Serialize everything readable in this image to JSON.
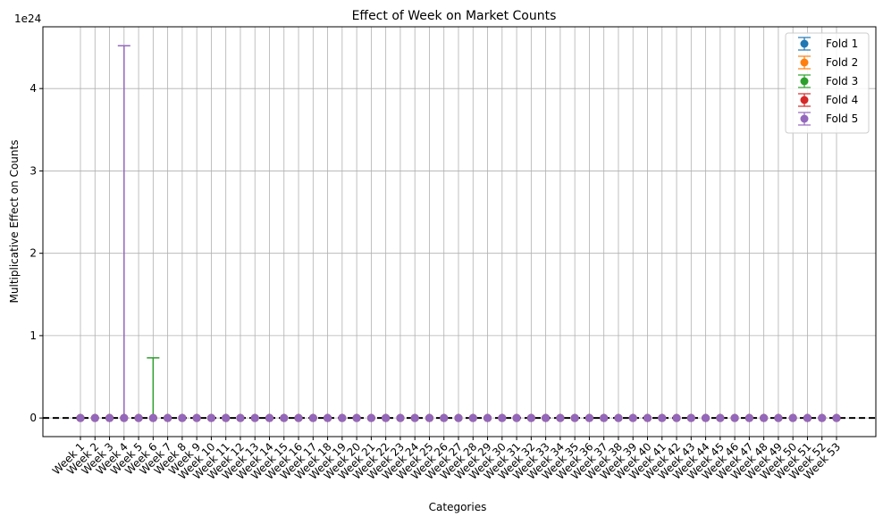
{
  "chart_data": {
    "type": "scatter",
    "title": "Effect of Week on Market Counts",
    "xlabel": "Categories",
    "ylabel": "Multiplicative Effect on Counts",
    "y_offset_label": "1e24",
    "y_scale_exponent": 24,
    "ylim": [
      -0.226,
      4.75
    ],
    "yticks": [
      0,
      1,
      2,
      3,
      4
    ],
    "grid": true,
    "legend_position": "top-right",
    "reference_line": {
      "y": 0,
      "style": "dashed",
      "color": "#000000"
    },
    "categories": [
      "Week 1",
      "Week 2",
      "Week 3",
      "Week 4",
      "Week 5",
      "Week 6",
      "Week 7",
      "Week 8",
      "Week 9",
      "Week 10",
      "Week 11",
      "Week 12",
      "Week 13",
      "Week 14",
      "Week 15",
      "Week 16",
      "Week 17",
      "Week 18",
      "Week 19",
      "Week 20",
      "Week 21",
      "Week 22",
      "Week 23",
      "Week 24",
      "Week 25",
      "Week 26",
      "Week 27",
      "Week 28",
      "Week 29",
      "Week 30",
      "Week 31",
      "Week 32",
      "Week 33",
      "Week 34",
      "Week 35",
      "Week 36",
      "Week 37",
      "Week 38",
      "Week 39",
      "Week 40",
      "Week 41",
      "Week 42",
      "Week 43",
      "Week 44",
      "Week 45",
      "Week 46",
      "Week 47",
      "Week 48",
      "Week 49",
      "Week 50",
      "Week 51",
      "Week 52",
      "Week 53"
    ],
    "series": [
      {
        "name": "Fold 1",
        "color": "#1f77b4",
        "value": 0,
        "error_bars": []
      },
      {
        "name": "Fold 2",
        "color": "#ff7f0e",
        "value": 0,
        "error_bars": []
      },
      {
        "name": "Fold 3",
        "color": "#2ca02c",
        "value": 0,
        "error_bars": [
          {
            "category": "Week 6",
            "upper": 0.73
          }
        ]
      },
      {
        "name": "Fold 4",
        "color": "#d62728",
        "value": 0,
        "error_bars": []
      },
      {
        "name": "Fold 5",
        "color": "#9467bd",
        "value": 0,
        "error_bars": [
          {
            "category": "Week 4",
            "upper": 4.52
          }
        ]
      }
    ]
  }
}
